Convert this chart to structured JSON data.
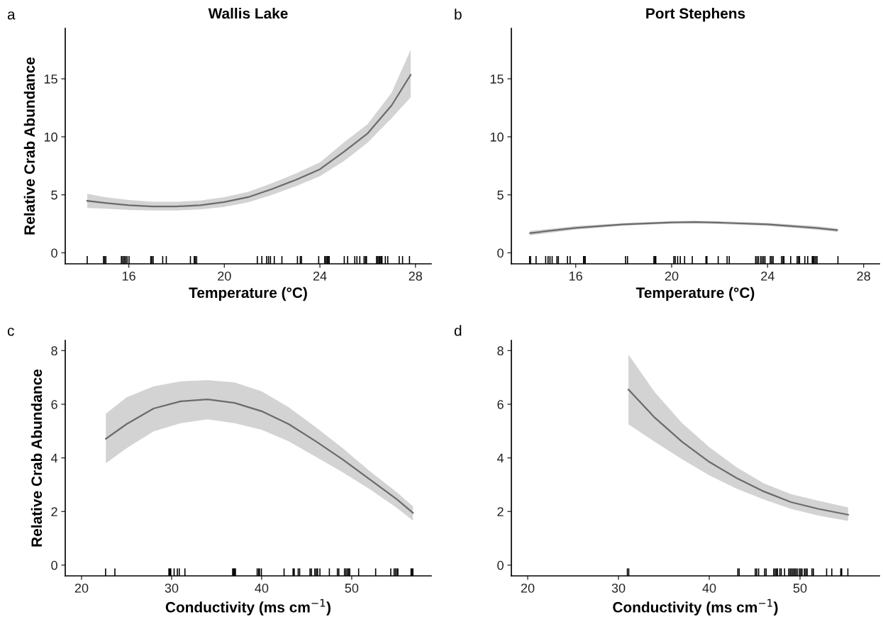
{
  "chart_data": [
    {
      "type": "line",
      "title": "Wallis Lake",
      "xlabel": "Temperature (°C)",
      "ylabel": "Relative Crab Abundance",
      "annotations": [
        "a"
      ],
      "xlim": [
        13.34,
        28.66
      ],
      "ylim": [
        -0.95,
        19.35
      ],
      "xticks": [
        16,
        20,
        24,
        28
      ],
      "yticks": [
        0,
        5,
        10,
        15
      ],
      "series": [
        {
          "color": "#6b6b6b",
          "x": [
            14.26,
            15,
            16,
            17,
            18,
            19,
            20,
            21,
            22,
            23,
            24,
            25,
            26,
            27,
            27.8
          ],
          "values": [
            4.48,
            4.3,
            4.1,
            4.0,
            4.0,
            4.1,
            4.38,
            4.8,
            5.5,
            6.3,
            7.2,
            8.7,
            10.3,
            12.7,
            15.35
          ],
          "lower": [
            3.87,
            3.8,
            3.7,
            3.65,
            3.65,
            3.75,
            3.95,
            4.35,
            5.0,
            5.75,
            6.6,
            7.9,
            9.5,
            11.6,
            13.4
          ],
          "upper": [
            5.09,
            4.8,
            4.55,
            4.4,
            4.4,
            4.5,
            4.8,
            5.25,
            6.0,
            6.85,
            7.8,
            9.5,
            11.1,
            13.8,
            17.5
          ]
        },
        {
          "type": "bar",
          "color": "#000000",
          "x": [
            14.26,
            14.94,
            14.99,
            15.04,
            15.69,
            15.75,
            15.81,
            15.87,
            15.93,
            16.01,
            16.92,
            16.96,
            17.02,
            17.42,
            17.57,
            18.58,
            18.74,
            18.78,
            18.84,
            21.38,
            21.57,
            21.77,
            21.85,
            21.93,
            22.09,
            22.41,
            23.06,
            23.18,
            23.23,
            23.95,
            24.2,
            24.25,
            24.3,
            24.35,
            24.39,
            25.02,
            25.16,
            25.46,
            25.55,
            25.67,
            25.85,
            25.91,
            25.95,
            26.37,
            26.42,
            26.47,
            26.52,
            26.56,
            26.6,
            26.74,
            26.84,
            27.32,
            27.46,
            27.75
          ],
          "base": [
            -0.95,
            -0.95,
            -0.95,
            -0.95,
            -0.95,
            -0.95,
            -0.95,
            -0.95,
            -0.95,
            -0.95,
            -0.95,
            -0.95,
            -0.95,
            -0.95,
            -0.95,
            -0.95,
            -0.95,
            -0.95,
            -0.95,
            -0.95,
            -0.95,
            -0.95,
            -0.95,
            -0.95,
            -0.95,
            -0.95,
            -0.95,
            -0.95,
            -0.95,
            -0.95,
            -0.95,
            -0.95,
            -0.95,
            -0.95,
            -0.95,
            -0.95,
            -0.95,
            -0.95,
            -0.95,
            -0.95,
            -0.95,
            -0.95,
            -0.95,
            -0.95,
            -0.95,
            -0.95,
            -0.95,
            -0.95,
            -0.95,
            -0.95,
            -0.95,
            -0.95,
            -0.95,
            -0.95
          ],
          "values": [
            0.67,
            0.67,
            0.67,
            0.67,
            0.67,
            0.67,
            0.67,
            0.67,
            0.67,
            0.67,
            0.67,
            0.67,
            0.67,
            0.67,
            0.67,
            0.67,
            0.67,
            0.67,
            0.67,
            0.67,
            0.67,
            0.67,
            0.67,
            0.67,
            0.67,
            0.67,
            0.67,
            0.67,
            0.67,
            0.67,
            0.67,
            0.67,
            0.67,
            0.67,
            0.67,
            0.67,
            0.67,
            0.67,
            0.67,
            0.67,
            0.67,
            0.67,
            0.67,
            0.67,
            0.67,
            0.67,
            0.67,
            0.67,
            0.67,
            0.67,
            0.67,
            0.67,
            0.67,
            0.67
          ]
        }
      ]
    },
    {
      "type": "line",
      "title": "Port Stephens",
      "xlabel": "Temperature (°C)",
      "annotations": [
        "b"
      ],
      "xlim": [
        13.32,
        28.66
      ],
      "ylim": [
        -0.95,
        19.35
      ],
      "xticks": [
        16,
        20,
        24,
        28
      ],
      "yticks": [
        0,
        5,
        10,
        15
      ],
      "series": [
        {
          "color": "#6b6b6b",
          "x": [
            14.1,
            16,
            18,
            20,
            21,
            22,
            24,
            26,
            26.9
          ],
          "values": [
            1.7,
            2.15,
            2.45,
            2.62,
            2.65,
            2.6,
            2.45,
            2.15,
            1.95
          ],
          "lower": [
            1.5,
            2.0,
            2.33,
            2.5,
            2.53,
            2.48,
            2.32,
            2.0,
            1.8
          ],
          "upper": [
            1.9,
            2.3,
            2.57,
            2.74,
            2.77,
            2.72,
            2.58,
            2.3,
            2.1
          ]
        },
        {
          "type": "bar",
          "color": "#000000",
          "x": [
            14.08,
            14.12,
            14.35,
            14.75,
            14.85,
            14.93,
            15.02,
            15.22,
            15.28,
            15.66,
            15.77,
            16.33,
            16.36,
            16.4,
            18.08,
            18.16,
            19.26,
            19.3,
            19.34,
            20.09,
            20.15,
            20.25,
            20.36,
            20.54,
            20.86,
            21.43,
            21.47,
            21.94,
            22.31,
            22.4,
            23.5,
            23.56,
            23.62,
            23.71,
            23.77,
            23.83,
            23.89,
            24.11,
            24.17,
            24.23,
            24.58,
            24.64,
            24.68,
            24.96,
            25.23,
            25.29,
            25.33,
            25.55,
            25.67,
            25.86,
            25.9,
            25.94,
            26.0,
            26.06,
            26.93
          ],
          "base": [
            -0.95,
            -0.95,
            -0.95,
            -0.95,
            -0.95,
            -0.95,
            -0.95,
            -0.95,
            -0.95,
            -0.95,
            -0.95,
            -0.95,
            -0.95,
            -0.95,
            -0.95,
            -0.95,
            -0.95,
            -0.95,
            -0.95,
            -0.95,
            -0.95,
            -0.95,
            -0.95,
            -0.95,
            -0.95,
            -0.95,
            -0.95,
            -0.95,
            -0.95,
            -0.95,
            -0.95,
            -0.95,
            -0.95,
            -0.95,
            -0.95,
            -0.95,
            -0.95,
            -0.95,
            -0.95,
            -0.95,
            -0.95,
            -0.95,
            -0.95,
            -0.95,
            -0.95,
            -0.95,
            -0.95,
            -0.95,
            -0.95,
            -0.95,
            -0.95,
            -0.95,
            -0.95,
            -0.95,
            -0.95
          ],
          "values": [
            0.67,
            0.67,
            0.67,
            0.67,
            0.67,
            0.67,
            0.67,
            0.67,
            0.67,
            0.67,
            0.67,
            0.67,
            0.67,
            0.67,
            0.67,
            0.67,
            0.67,
            0.67,
            0.67,
            0.67,
            0.67,
            0.67,
            0.67,
            0.67,
            0.67,
            0.67,
            0.67,
            0.67,
            0.67,
            0.67,
            0.67,
            0.67,
            0.67,
            0.67,
            0.67,
            0.67,
            0.67,
            0.67,
            0.67,
            0.67,
            0.67,
            0.67,
            0.67,
            0.67,
            0.67,
            0.67,
            0.67,
            0.67,
            0.67,
            0.67,
            0.67,
            0.67,
            0.67,
            0.67,
            0.67
          ]
        }
      ]
    },
    {
      "type": "line",
      "xlabel": "Conductivity (ms cm$^{−1}$)",
      "ylabel": "Relative Crab Abundance",
      "annotations": [
        "c"
      ],
      "xlim": [
        18.19,
        58.83
      ],
      "ylim": [
        -0.4,
        8.38
      ],
      "xticks": [
        20,
        30,
        40,
        50
      ],
      "yticks": [
        0,
        2,
        4,
        6,
        8
      ],
      "series": [
        {
          "color": "#6b6b6b",
          "x": [
            22.7,
            25,
            28,
            31,
            34,
            37,
            40,
            43,
            46,
            49,
            52,
            55,
            56.8
          ],
          "values": [
            4.71,
            5.26,
            5.84,
            6.11,
            6.18,
            6.05,
            5.74,
            5.26,
            4.62,
            3.94,
            3.2,
            2.46,
            1.95
          ],
          "lower": [
            3.8,
            4.36,
            4.99,
            5.29,
            5.44,
            5.29,
            5.05,
            4.62,
            4.04,
            3.46,
            2.83,
            2.14,
            1.66
          ],
          "upper": [
            5.65,
            6.26,
            6.67,
            6.85,
            6.9,
            6.81,
            6.48,
            5.89,
            5.15,
            4.36,
            3.51,
            2.72,
            2.19
          ]
        },
        {
          "type": "bar",
          "color": "#000000",
          "x": [
            22.67,
            23.7,
            29.7,
            29.8,
            29.91,
            30.28,
            30.64,
            30.85,
            31.48,
            36.78,
            36.88,
            36.99,
            37.09,
            39.5,
            39.66,
            39.76,
            39.97,
            42.49,
            43.49,
            43.62,
            44.06,
            44.22,
            45.37,
            45.53,
            45.9,
            46.06,
            46.21,
            46.47,
            47.52,
            48.41,
            48.57,
            49.2,
            49.36,
            49.52,
            49.67,
            49.78,
            50.77,
            52.66,
            54.34,
            54.71,
            54.86,
            55.02,
            55.13,
            56.59,
            56.7,
            56.8
          ],
          "base": [
            -0.4,
            -0.4,
            -0.4,
            -0.4,
            -0.4,
            -0.4,
            -0.4,
            -0.4,
            -0.4,
            -0.4,
            -0.4,
            -0.4,
            -0.4,
            -0.4,
            -0.4,
            -0.4,
            -0.4,
            -0.4,
            -0.4,
            -0.4,
            -0.4,
            -0.4,
            -0.4,
            -0.4,
            -0.4,
            -0.4,
            -0.4,
            -0.4,
            -0.4,
            -0.4,
            -0.4,
            -0.4,
            -0.4,
            -0.4,
            -0.4,
            -0.4,
            -0.4,
            -0.4,
            -0.4,
            -0.4,
            -0.4,
            -0.4,
            -0.4,
            -0.4,
            -0.4,
            -0.4
          ],
          "values": [
            0.28,
            0.28,
            0.28,
            0.28,
            0.28,
            0.28,
            0.28,
            0.28,
            0.28,
            0.28,
            0.28,
            0.28,
            0.28,
            0.28,
            0.28,
            0.28,
            0.28,
            0.28,
            0.28,
            0.28,
            0.28,
            0.28,
            0.28,
            0.28,
            0.28,
            0.28,
            0.28,
            0.28,
            0.28,
            0.28,
            0.28,
            0.28,
            0.28,
            0.28,
            0.28,
            0.28,
            0.28,
            0.28,
            0.28,
            0.28,
            0.28,
            0.28,
            0.28,
            0.28,
            0.28,
            0.28
          ]
        }
      ]
    },
    {
      "type": "line",
      "xlabel": "Conductivity (ms cm$^{−1}$)",
      "annotations": [
        "d"
      ],
      "xlim": [
        18.2,
        58.75
      ],
      "ylim": [
        -0.4,
        8.38
      ],
      "xticks": [
        20,
        30,
        40,
        50
      ],
      "yticks": [
        0,
        2,
        4,
        6,
        8
      ],
      "series": [
        {
          "color": "#6b6b6b",
          "x": [
            31.1,
            34,
            37,
            40,
            43,
            46,
            49,
            52,
            55.3
          ],
          "values": [
            6.55,
            5.5,
            4.6,
            3.85,
            3.25,
            2.75,
            2.35,
            2.1,
            1.88
          ],
          "lower": [
            5.25,
            4.6,
            3.95,
            3.35,
            2.85,
            2.45,
            2.1,
            1.85,
            1.65
          ],
          "upper": [
            7.85,
            6.45,
            5.3,
            4.4,
            3.65,
            3.05,
            2.65,
            2.4,
            2.15
          ]
        },
        {
          "type": "bar",
          "color": "#000000",
          "x": [
            30.98,
            31.13,
            43.15,
            43.3,
            45.07,
            45.23,
            45.44,
            46.11,
            46.27,
            47.1,
            47.26,
            47.41,
            47.52,
            47.78,
            47.93,
            48.3,
            48.76,
            48.92,
            49.08,
            49.23,
            49.39,
            49.54,
            49.7,
            49.91,
            50.07,
            50.22,
            50.48,
            50.64,
            50.79,
            51.31,
            51.47,
            52.93,
            53.5,
            54.49,
            54.59,
            55.27
          ],
          "base": [
            -0.4,
            -0.4,
            -0.4,
            -0.4,
            -0.4,
            -0.4,
            -0.4,
            -0.4,
            -0.4,
            -0.4,
            -0.4,
            -0.4,
            -0.4,
            -0.4,
            -0.4,
            -0.4,
            -0.4,
            -0.4,
            -0.4,
            -0.4,
            -0.4,
            -0.4,
            -0.4,
            -0.4,
            -0.4,
            -0.4,
            -0.4,
            -0.4,
            -0.4,
            -0.4,
            -0.4,
            -0.4,
            -0.4,
            -0.4,
            -0.4,
            -0.4
          ],
          "values": [
            0.28,
            0.28,
            0.28,
            0.28,
            0.28,
            0.28,
            0.28,
            0.28,
            0.28,
            0.28,
            0.28,
            0.28,
            0.28,
            0.28,
            0.28,
            0.28,
            0.28,
            0.28,
            0.28,
            0.28,
            0.28,
            0.28,
            0.28,
            0.28,
            0.28,
            0.28,
            0.28,
            0.28,
            0.28,
            0.28,
            0.28,
            0.28,
            0.28,
            0.28,
            0.28,
            0.28
          ]
        }
      ]
    }
  ]
}
